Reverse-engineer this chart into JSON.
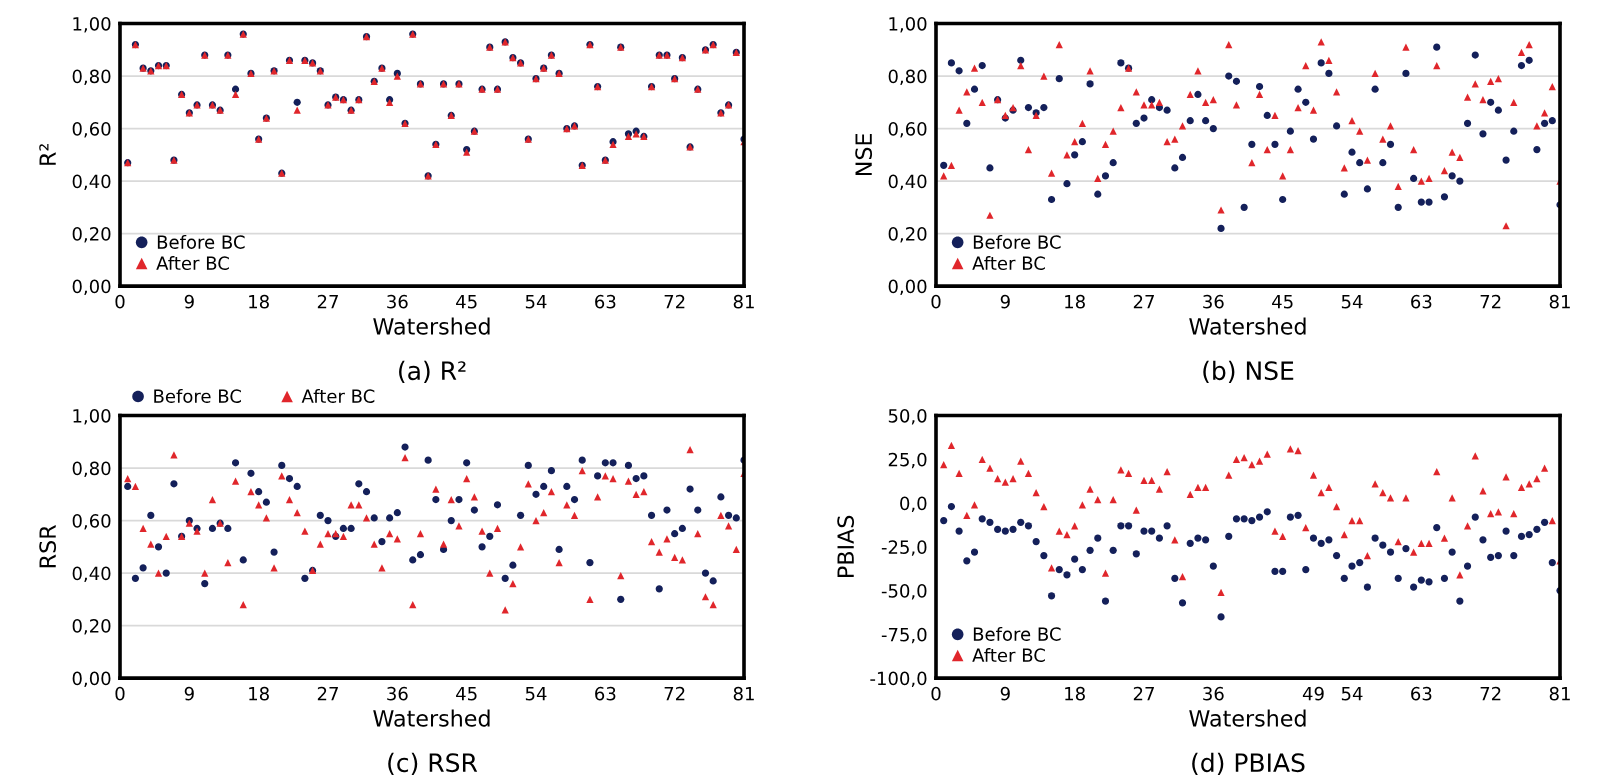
{
  "chart_data": [
    {
      "type": "scatter",
      "title": "(a) R²",
      "xlabel": "Watershed",
      "ylabel": "R²",
      "x": [
        1,
        2,
        3,
        4,
        5,
        6,
        7,
        8,
        9,
        10,
        11,
        12,
        13,
        14,
        15,
        16,
        17,
        18,
        19,
        20,
        21,
        22,
        23,
        24,
        25,
        26,
        27,
        28,
        29,
        30,
        31,
        32,
        33,
        34,
        35,
        36,
        37,
        38,
        39,
        40,
        41,
        42,
        43,
        44,
        45,
        46,
        47,
        48,
        49,
        50,
        51,
        52,
        53,
        54,
        55,
        56,
        57,
        58,
        59,
        60,
        61,
        62,
        63,
        64,
        65,
        66,
        67,
        68,
        69,
        70,
        71,
        72,
        73,
        74,
        75,
        76,
        77,
        78,
        79,
        80,
        81
      ],
      "xlim": [
        0,
        81
      ],
      "xticks": [
        0,
        9,
        18,
        27,
        36,
        45,
        54,
        63,
        72,
        81
      ],
      "ylim": [
        0,
        1
      ],
      "yticks": [
        {
          "value": 0,
          "label": "0,00"
        },
        {
          "value": 0.2,
          "label": "0,20"
        },
        {
          "value": 0.4,
          "label": "0,40"
        },
        {
          "value": 0.6,
          "label": "0,60"
        },
        {
          "value": 0.8,
          "label": "0,80"
        },
        {
          "value": 1,
          "label": "1,00"
        }
      ],
      "grid": "y",
      "legend": "bottom left",
      "series": [
        {
          "name": "Before BC",
          "color": "#14205a",
          "marker": "circle",
          "values": [
            0.47,
            0.92,
            0.83,
            0.82,
            0.84,
            0.84,
            0.48,
            0.73,
            0.66,
            0.69,
            0.88,
            0.69,
            0.67,
            0.88,
            0.75,
            0.96,
            0.81,
            0.56,
            0.64,
            0.82,
            0.43,
            0.86,
            0.7,
            0.86,
            0.85,
            0.82,
            0.69,
            0.72,
            0.71,
            0.67,
            0.71,
            0.95,
            0.78,
            0.83,
            0.71,
            0.81,
            0.62,
            0.96,
            0.77,
            0.42,
            0.54,
            0.77,
            0.65,
            0.77,
            0.52,
            0.59,
            0.75,
            0.91,
            0.75,
            0.93,
            0.87,
            0.85,
            0.56,
            0.79,
            0.83,
            0.88,
            0.81,
            0.6,
            0.61,
            0.46,
            0.92,
            0.76,
            0.48,
            0.55,
            0.91,
            0.58,
            0.59,
            0.57,
            0.76,
            0.88,
            0.88,
            0.79,
            0.87,
            0.53,
            0.75,
            0.9,
            0.92,
            0.66,
            0.69,
            0.89,
            0.56
          ]
        },
        {
          "name": "After BC",
          "color": "#e0262b",
          "marker": "triangle",
          "values": [
            0.47,
            0.92,
            0.83,
            0.82,
            0.84,
            0.84,
            0.48,
            0.73,
            0.66,
            0.69,
            0.88,
            0.69,
            0.67,
            0.88,
            0.73,
            0.96,
            0.81,
            0.56,
            0.64,
            0.82,
            0.43,
            0.86,
            0.67,
            0.86,
            0.85,
            0.82,
            0.69,
            0.72,
            0.71,
            0.67,
            0.71,
            0.95,
            0.78,
            0.83,
            0.7,
            0.8,
            0.62,
            0.96,
            0.77,
            0.42,
            0.54,
            0.77,
            0.65,
            0.77,
            0.51,
            0.59,
            0.75,
            0.91,
            0.75,
            0.93,
            0.87,
            0.85,
            0.56,
            0.79,
            0.83,
            0.88,
            0.81,
            0.6,
            0.61,
            0.46,
            0.92,
            0.76,
            0.48,
            0.54,
            0.91,
            0.57,
            0.58,
            0.57,
            0.76,
            0.88,
            0.88,
            0.79,
            0.87,
            0.53,
            0.75,
            0.9,
            0.92,
            0.66,
            0.69,
            0.89,
            0.55
          ]
        }
      ]
    },
    {
      "type": "scatter",
      "title": "(b) NSE",
      "xlabel": "Watershed",
      "ylabel": "NSE",
      "x": [
        1,
        2,
        3,
        4,
        5,
        6,
        7,
        8,
        9,
        10,
        11,
        12,
        13,
        14,
        15,
        16,
        17,
        18,
        19,
        20,
        21,
        22,
        23,
        24,
        25,
        26,
        27,
        28,
        29,
        30,
        31,
        32,
        33,
        34,
        35,
        36,
        37,
        38,
        39,
        40,
        41,
        42,
        43,
        44,
        45,
        46,
        47,
        48,
        49,
        50,
        51,
        52,
        53,
        54,
        55,
        56,
        57,
        58,
        59,
        60,
        61,
        62,
        63,
        64,
        65,
        66,
        67,
        68,
        69,
        70,
        71,
        72,
        73,
        74,
        75,
        76,
        77,
        78,
        79,
        80,
        81
      ],
      "xlim": [
        0,
        81
      ],
      "xticks": [
        0,
        9,
        18,
        27,
        36,
        45,
        54,
        63,
        72,
        81
      ],
      "ylim": [
        0,
        1
      ],
      "yticks": [
        {
          "value": 0,
          "label": "0,00"
        },
        {
          "value": 0.2,
          "label": "0,20"
        },
        {
          "value": 0.4,
          "label": "0,40"
        },
        {
          "value": 0.6,
          "label": "0,60"
        },
        {
          "value": 0.8,
          "label": "0,80"
        },
        {
          "value": 1,
          "label": "1,00"
        }
      ],
      "grid": "y",
      "legend": "bottom left",
      "series": [
        {
          "name": "Before BC",
          "color": "#14205a",
          "marker": "circle",
          "values": [
            0.46,
            0.85,
            0.82,
            0.62,
            0.75,
            0.84,
            0.45,
            0.71,
            0.64,
            0.67,
            0.86,
            0.68,
            0.66,
            0.68,
            0.33,
            0.79,
            0.39,
            0.5,
            0.55,
            0.77,
            0.35,
            0.42,
            0.47,
            0.85,
            0.83,
            0.62,
            0.64,
            0.71,
            0.68,
            0.67,
            0.45,
            0.49,
            0.63,
            0.73,
            0.63,
            0.6,
            0.22,
            0.8,
            0.78,
            0.3,
            0.54,
            0.76,
            0.65,
            0.54,
            0.33,
            0.59,
            0.75,
            0.7,
            0.56,
            0.85,
            0.81,
            0.61,
            0.35,
            0.51,
            0.47,
            0.37,
            0.75,
            0.47,
            0.54,
            0.3,
            0.81,
            0.41,
            0.32,
            0.32,
            0.91,
            0.34,
            0.42,
            0.4,
            0.62,
            0.88,
            0.58,
            0.7,
            0.67,
            0.48,
            0.59,
            0.84,
            0.86,
            0.52,
            0.62,
            0.63,
            0.31
          ]
        },
        {
          "name": "After BC",
          "color": "#e0262b",
          "marker": "triangle",
          "values": [
            0.42,
            0.46,
            0.67,
            0.74,
            0.83,
            0.7,
            0.27,
            0.71,
            0.65,
            0.68,
            0.84,
            0.52,
            0.65,
            0.8,
            0.43,
            0.92,
            0.5,
            0.55,
            0.62,
            0.82,
            0.41,
            0.54,
            0.59,
            0.68,
            0.83,
            0.74,
            0.69,
            0.69,
            0.7,
            0.55,
            0.56,
            0.61,
            0.73,
            0.82,
            0.7,
            0.71,
            0.29,
            0.92,
            0.69,
            null,
            0.47,
            0.73,
            0.52,
            0.65,
            0.42,
            0.52,
            0.68,
            0.84,
            0.67,
            0.93,
            0.86,
            0.74,
            0.45,
            0.63,
            0.59,
            0.48,
            0.81,
            0.56,
            0.61,
            0.38,
            0.91,
            0.52,
            0.4,
            0.41,
            0.84,
            0.44,
            0.51,
            0.49,
            0.72,
            0.77,
            0.71,
            0.78,
            0.79,
            0.23,
            0.7,
            0.89,
            0.92,
            0.61,
            0.66,
            0.76,
            0.4
          ]
        }
      ]
    },
    {
      "type": "scatter",
      "title": "(c) RSR",
      "xlabel": "Watershed",
      "ylabel": "RSR",
      "x": [
        1,
        2,
        3,
        4,
        5,
        6,
        7,
        8,
        9,
        10,
        11,
        12,
        13,
        14,
        15,
        16,
        17,
        18,
        19,
        20,
        21,
        22,
        23,
        24,
        25,
        26,
        27,
        28,
        29,
        30,
        31,
        32,
        33,
        34,
        35,
        36,
        37,
        38,
        39,
        40,
        41,
        42,
        43,
        44,
        45,
        46,
        47,
        48,
        49,
        50,
        51,
        52,
        53,
        54,
        55,
        56,
        57,
        58,
        59,
        60,
        61,
        62,
        63,
        64,
        65,
        66,
        67,
        68,
        69,
        70,
        71,
        72,
        73,
        74,
        75,
        76,
        77,
        78,
        79,
        80,
        81
      ],
      "xlim": [
        0,
        81
      ],
      "xticks": [
        0,
        9,
        18,
        27,
        36,
        45,
        54,
        63,
        72,
        81
      ],
      "ylim": [
        0,
        1
      ],
      "yticks": [
        {
          "value": 0,
          "label": "0,00"
        },
        {
          "value": 0.2,
          "label": "0,20"
        },
        {
          "value": 0.4,
          "label": "0,40"
        },
        {
          "value": 0.6,
          "label": "0,60"
        },
        {
          "value": 0.8,
          "label": "0,80"
        },
        {
          "value": 1,
          "label": "1,00"
        }
      ],
      "grid": "y",
      "legend": "top left",
      "series": [
        {
          "name": "Before BC",
          "color": "#14205a",
          "marker": "circle",
          "values": [
            0.73,
            0.38,
            0.42,
            0.62,
            0.5,
            0.4,
            0.74,
            0.54,
            0.6,
            0.57,
            0.36,
            0.57,
            0.59,
            0.57,
            0.82,
            0.45,
            0.78,
            0.71,
            0.67,
            0.48,
            0.81,
            0.76,
            0.73,
            0.38,
            0.41,
            0.62,
            0.6,
            0.54,
            0.57,
            0.57,
            0.74,
            0.71,
            0.61,
            0.52,
            0.61,
            0.63,
            0.88,
            0.45,
            0.47,
            0.83,
            0.68,
            0.49,
            0.6,
            0.68,
            0.82,
            0.64,
            0.5,
            0.54,
            0.66,
            0.38,
            0.43,
            0.62,
            0.81,
            0.7,
            0.73,
            0.79,
            0.49,
            0.73,
            0.68,
            0.83,
            0.44,
            0.77,
            0.82,
            0.82,
            0.3,
            0.81,
            0.76,
            0.77,
            0.62,
            0.34,
            0.64,
            0.55,
            0.57,
            0.72,
            0.64,
            0.4,
            0.37,
            0.69,
            0.62,
            0.61,
            0.83
          ]
        },
        {
          "name": "After BC",
          "color": "#e0262b",
          "marker": "triangle",
          "values": [
            0.76,
            0.73,
            0.57,
            0.51,
            0.4,
            0.54,
            0.85,
            0.54,
            0.59,
            0.56,
            0.4,
            0.68,
            0.59,
            0.44,
            0.75,
            0.28,
            0.71,
            0.66,
            0.61,
            0.42,
            0.77,
            0.68,
            0.63,
            0.56,
            0.41,
            0.51,
            0.55,
            0.55,
            0.54,
            0.66,
            0.66,
            0.61,
            0.51,
            0.42,
            0.55,
            0.53,
            0.84,
            0.28,
            0.55,
            null,
            0.72,
            0.51,
            0.68,
            0.58,
            0.76,
            0.69,
            0.56,
            0.4,
            0.57,
            0.26,
            0.36,
            0.5,
            0.74,
            0.6,
            0.63,
            0.71,
            0.44,
            0.66,
            0.62,
            0.79,
            0.3,
            0.69,
            0.77,
            0.76,
            0.39,
            0.75,
            0.7,
            0.71,
            0.52,
            0.48,
            0.53,
            0.46,
            0.45,
            0.87,
            0.55,
            0.31,
            0.28,
            0.62,
            0.58,
            0.49,
            0.78
          ]
        }
      ]
    },
    {
      "type": "scatter",
      "title": "(d) PBIAS",
      "xlabel": "Watershed",
      "ylabel": "PBIAS",
      "x": [
        1,
        2,
        3,
        4,
        5,
        6,
        7,
        8,
        9,
        10,
        11,
        12,
        13,
        14,
        15,
        16,
        17,
        18,
        19,
        20,
        21,
        22,
        23,
        24,
        25,
        26,
        27,
        28,
        29,
        30,
        31,
        32,
        33,
        34,
        35,
        36,
        37,
        38,
        39,
        40,
        41,
        42,
        43,
        44,
        45,
        46,
        47,
        48,
        49,
        50,
        51,
        52,
        53,
        54,
        55,
        56,
        57,
        58,
        59,
        60,
        61,
        62,
        63,
        64,
        65,
        66,
        67,
        68,
        69,
        70,
        71,
        72,
        73,
        74,
        75,
        76,
        77,
        78,
        79,
        80,
        81
      ],
      "xlim": [
        0,
        81
      ],
      "xticks": [
        0,
        9,
        18,
        27,
        36,
        49,
        54,
        63,
        72,
        81
      ],
      "ylim": [
        -100,
        50
      ],
      "yticks": [
        {
          "value": -100,
          "label": "-100,0"
        },
        {
          "value": -75,
          "label": "-75,0"
        },
        {
          "value": -50,
          "label": "-50,0"
        },
        {
          "value": -25,
          "label": "-25,0"
        },
        {
          "value": 0,
          "label": "0,0"
        },
        {
          "value": 25,
          "label": "25,0"
        },
        {
          "value": 50,
          "label": "50,0"
        }
      ],
      "grid": false,
      "legend": "bottom left",
      "series": [
        {
          "name": "Before BC",
          "color": "#14205a",
          "marker": "circle",
          "values": [
            -10,
            -2,
            -16,
            -33,
            -28,
            -9,
            -11,
            -15,
            -16,
            -15,
            -11,
            -13,
            -22,
            -30,
            -53,
            -38,
            -41,
            -32,
            -38,
            -27,
            -20,
            -56,
            -27,
            -13,
            -13,
            -29,
            -16,
            -16,
            -20,
            -13,
            -43,
            -57,
            -23,
            -20,
            -21,
            -36,
            -65,
            -19,
            -9,
            -9,
            -10,
            -8,
            -5,
            -39,
            -39,
            -8,
            -7,
            -38,
            -20,
            -23,
            -21,
            -30,
            -43,
            -36,
            -34,
            -48,
            -20,
            -24,
            -28,
            -43,
            -26,
            -48,
            -44,
            -45,
            -14,
            -43,
            -28,
            -56,
            -36,
            -8,
            -21,
            -31,
            -30,
            -16,
            -30,
            -19,
            -18,
            -15,
            -11,
            -34,
            -50
          ]
        },
        {
          "name": "After BC",
          "color": "#e0262b",
          "marker": "triangle",
          "values": [
            22,
            33,
            17,
            -7,
            -1,
            25,
            20,
            14,
            12,
            14,
            24,
            17,
            6,
            -2,
            -37,
            -16,
            -18,
            -13,
            -1,
            8,
            2,
            -40,
            2,
            19,
            17,
            -4,
            13,
            13,
            8,
            18,
            -21,
            -42,
            5,
            9,
            9,
            null,
            -51,
            16,
            25,
            26,
            22,
            24,
            28,
            -16,
            -19,
            31,
            30,
            -14,
            16,
            6,
            9,
            -2,
            -18,
            -10,
            -10,
            -30,
            11,
            6,
            3,
            -22,
            3,
            -28,
            -23,
            -23,
            18,
            -20,
            3,
            -41,
            -13,
            27,
            7,
            -6,
            -5,
            15,
            -6,
            9,
            11,
            14,
            20,
            -10,
            -33
          ]
        }
      ]
    }
  ]
}
